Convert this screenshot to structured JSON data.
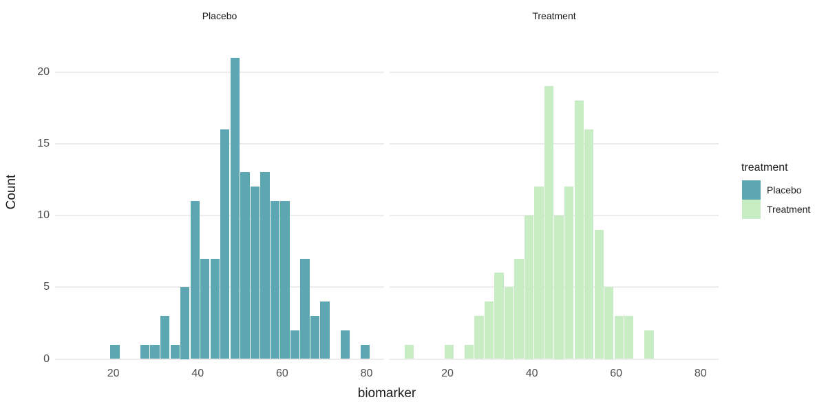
{
  "figure": {
    "facet_titles": [
      "Placebo",
      "Treatment"
    ]
  },
  "colors": {
    "placebo_fill": "#5da7b3",
    "treatment_fill": "#c8ecc4",
    "gridline": "#ececec",
    "axis_text": "#4d4d4d",
    "title_text": "#1a1a1a",
    "background": "#ffffff"
  },
  "chart_data": {
    "type": "bar",
    "subtype": "faceted-histogram",
    "title": "",
    "xlabel": "biomarker",
    "ylabel": "Count",
    "grid": true,
    "legend": {
      "title": "treatment",
      "position": "right",
      "entries": [
        {
          "label": "Placebo",
          "color": "#5da7b3"
        },
        {
          "label": "Treatment",
          "color": "#c8ecc4"
        }
      ]
    },
    "x_ticks": [
      20,
      40,
      60,
      80
    ],
    "y_ticks": [
      0,
      5,
      10,
      15,
      20
    ],
    "xlim": [
      6.2,
      84.3
    ],
    "ylim": [
      0,
      22
    ],
    "bin_width": 2.37,
    "bin_centers": [
      10.9,
      13.27,
      15.64,
      18.01,
      20.38,
      22.75,
      25.12,
      27.49,
      29.86,
      32.23,
      34.6,
      36.97,
      39.34,
      41.71,
      44.08,
      46.45,
      48.82,
      51.19,
      53.56,
      55.93,
      58.3,
      60.67,
      63.04,
      65.41,
      67.78,
      70.15,
      72.52,
      74.89,
      77.26,
      79.63
    ],
    "series": [
      {
        "name": "Placebo",
        "color": "#5da7b3",
        "values": [
          0,
          0,
          0,
          0,
          1,
          0,
          0,
          1,
          1,
          3,
          1,
          5,
          11,
          7,
          7,
          16,
          21,
          13,
          12,
          13,
          11,
          11,
          2,
          7,
          3,
          4,
          0,
          2,
          0,
          1
        ]
      },
      {
        "name": "Treatment",
        "color": "#c8ecc4",
        "values": [
          1,
          0,
          0,
          0,
          1,
          0,
          1,
          3,
          4,
          6,
          5,
          7,
          10,
          12,
          19,
          10,
          12,
          18,
          16,
          9,
          5,
          3,
          3,
          0,
          2,
          0,
          0,
          0,
          0,
          0
        ]
      }
    ]
  }
}
